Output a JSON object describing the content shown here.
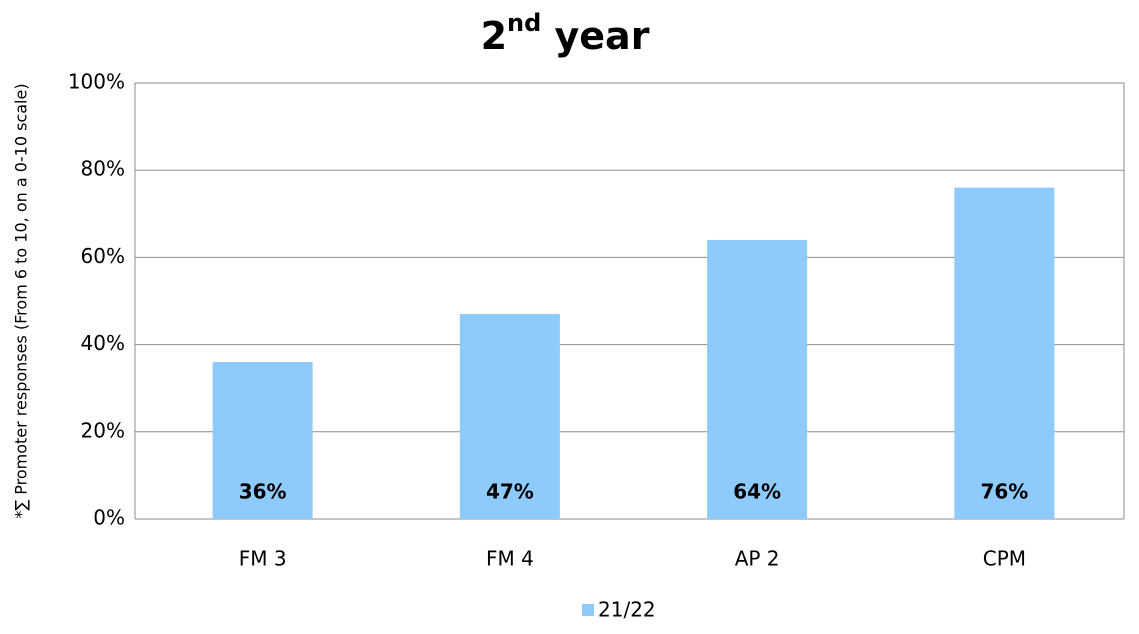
{
  "chart_data": {
    "type": "bar",
    "title": "2nd year",
    "y_label": "*∑ Promoter responses (From 6 to 10, on a 0-10 scale)",
    "categories": [
      "FM 3",
      "FM 4",
      "AP 2",
      "CPM"
    ],
    "series": [
      {
        "name": "21/22",
        "color": "#8ecafc",
        "values": [
          36,
          47,
          64,
          76
        ],
        "value_labels": [
          "36%",
          "47%",
          "64%",
          "76%"
        ]
      }
    ],
    "ylim": [
      0,
      100
    ],
    "yticks": [
      {
        "value": 0,
        "label": "0%"
      },
      {
        "value": 20,
        "label": "20%"
      },
      {
        "value": 40,
        "label": "40%"
      },
      {
        "value": 60,
        "label": "60%"
      },
      {
        "value": 80,
        "label": "80%"
      },
      {
        "value": 100,
        "label": "100%"
      }
    ],
    "grid": true,
    "legend": "bottom"
  }
}
